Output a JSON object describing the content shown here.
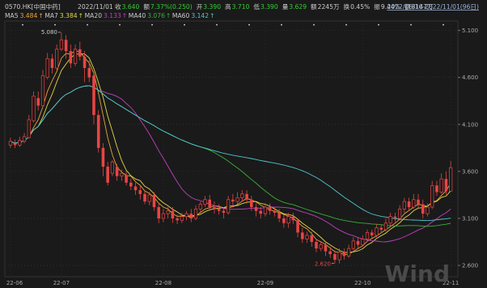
{
  "header": {
    "code": "0570.HK[中国中药]",
    "date": "2022/11/01",
    "fields": [
      {
        "label": "收",
        "value": "3.640",
        "color": "#33cc33"
      },
      {
        "label": "额",
        "value": "7.37%(0.250)",
        "color": "#33cc33"
      },
      {
        "label": "开",
        "value": "3.390",
        "color": "#33cc33"
      },
      {
        "label": "高",
        "value": "3.710",
        "color": "#33cc33"
      },
      {
        "label": "低",
        "value": "3.390",
        "color": "#33cc33"
      },
      {
        "label": "量",
        "value": "3.629",
        "color": "#33cc33"
      },
      {
        "label": "额",
        "value": "2245万",
        "color": "#cccccc"
      },
      {
        "label": "换",
        "value": "0.45%",
        "color": "#cccccc"
      },
      {
        "label": "振",
        "value": "9.44%",
        "color": "#cccccc"
      },
      {
        "label": "额",
        "value": "8147万",
        "color": "#cccccc"
      }
    ],
    "range": "2022/06/16-2022/11/01(96日)"
  },
  "ma_legend": [
    {
      "label": "MA5",
      "value": "3.484",
      "color": "#e8a33a"
    },
    {
      "label": "MA7",
      "value": "3.384",
      "color": "#e0d84a"
    },
    {
      "label": "MA20",
      "value": "3.133",
      "color": "#c040c0"
    },
    {
      "label": "MA40",
      "value": "3.076",
      "color": "#38b038"
    },
    {
      "label": "MA60",
      "value": "3.142",
      "color": "#4fc6d0"
    }
  ],
  "annotations": {
    "high": "5.080",
    "low": "2.620"
  },
  "watermark": "Wind",
  "chart_data": {
    "type": "candlestick",
    "yticks": [
      "5.100",
      "4.600",
      "4.100",
      "3.600",
      "3.100",
      "2.600"
    ],
    "ytick_values": [
      5.1,
      4.6,
      4.1,
      3.6,
      3.1,
      2.6
    ],
    "ylim": [
      2.48,
      5.2
    ],
    "xticks": [
      "22-06",
      "22-07",
      "22-08",
      "22-09",
      "22-10",
      "22-11"
    ],
    "xtick_index": [
      0,
      11,
      33,
      55,
      76,
      95
    ],
    "candles": [
      [
        3.88,
        3.92,
        3.96,
        3.85
      ],
      [
        3.9,
        3.88,
        3.94,
        3.85
      ],
      [
        3.88,
        3.93,
        3.97,
        3.86
      ],
      [
        3.92,
        3.97,
        4.01,
        3.9
      ],
      [
        3.96,
        4.15,
        4.2,
        3.95
      ],
      [
        4.14,
        4.4,
        4.45,
        4.12
      ],
      [
        4.38,
        4.3,
        4.45,
        4.25
      ],
      [
        4.3,
        4.62,
        4.68,
        4.28
      ],
      [
        4.6,
        4.8,
        4.86,
        4.58
      ],
      [
        4.8,
        4.7,
        4.85,
        4.64
      ],
      [
        4.7,
        4.9,
        4.95,
        4.68
      ],
      [
        4.9,
        5.0,
        5.08,
        4.88
      ],
      [
        5.0,
        4.88,
        5.05,
        4.8
      ],
      [
        4.88,
        4.75,
        4.95,
        4.7
      ],
      [
        4.75,
        4.9,
        4.95,
        4.72
      ],
      [
        4.9,
        4.82,
        4.98,
        4.78
      ],
      [
        4.82,
        4.7,
        4.88,
        4.55
      ],
      [
        4.7,
        4.6,
        4.78,
        4.55
      ],
      [
        4.62,
        4.2,
        4.65,
        4.1
      ],
      [
        4.2,
        3.85,
        4.25,
        3.8
      ],
      [
        3.85,
        3.65,
        3.9,
        3.55
      ],
      [
        3.65,
        3.48,
        3.7,
        3.45
      ],
      [
        3.58,
        3.7,
        3.72,
        3.55
      ],
      [
        3.65,
        3.55,
        3.68,
        3.5
      ],
      [
        3.55,
        3.58,
        3.62,
        3.5
      ],
      [
        3.56,
        3.48,
        3.6,
        3.45
      ],
      [
        3.48,
        3.44,
        3.52,
        3.4
      ],
      [
        3.44,
        3.4,
        3.48,
        3.35
      ],
      [
        3.4,
        3.36,
        3.45,
        3.3
      ],
      [
        3.36,
        3.28,
        3.4,
        3.25
      ],
      [
        3.28,
        3.35,
        3.38,
        3.24
      ],
      [
        3.35,
        3.22,
        3.38,
        3.18
      ],
      [
        3.22,
        3.1,
        3.26,
        3.05
      ],
      [
        3.1,
        3.15,
        3.2,
        3.06
      ],
      [
        3.15,
        3.18,
        3.22,
        3.1
      ],
      [
        3.18,
        3.1,
        3.22,
        3.05
      ],
      [
        3.1,
        3.08,
        3.14,
        3.04
      ],
      [
        3.08,
        3.12,
        3.16,
        3.05
      ],
      [
        3.12,
        3.15,
        3.18,
        3.08
      ],
      [
        3.15,
        3.1,
        3.2,
        3.06
      ],
      [
        3.1,
        3.2,
        3.24,
        3.08
      ],
      [
        3.2,
        3.25,
        3.28,
        3.15
      ],
      [
        3.25,
        3.3,
        3.34,
        3.22
      ],
      [
        3.3,
        3.22,
        3.35,
        3.18
      ],
      [
        3.22,
        3.2,
        3.28,
        3.15
      ],
      [
        3.2,
        3.18,
        3.25,
        3.14
      ],
      [
        3.18,
        3.16,
        3.22,
        3.1
      ],
      [
        3.16,
        3.3,
        3.34,
        3.14
      ],
      [
        3.3,
        3.28,
        3.36,
        3.22
      ],
      [
        3.28,
        3.32,
        3.38,
        3.25
      ],
      [
        3.32,
        3.36,
        3.4,
        3.28
      ],
      [
        3.36,
        3.3,
        3.4,
        3.26
      ],
      [
        3.3,
        3.22,
        3.34,
        3.18
      ],
      [
        3.22,
        3.18,
        3.26,
        3.12
      ],
      [
        3.18,
        3.15,
        3.22,
        3.1
      ],
      [
        3.15,
        3.22,
        3.26,
        3.12
      ],
      [
        3.22,
        3.18,
        3.26,
        3.14
      ],
      [
        3.18,
        3.16,
        3.22,
        3.12
      ],
      [
        3.16,
        3.1,
        3.2,
        3.06
      ],
      [
        3.1,
        3.05,
        3.14,
        3.0
      ],
      [
        3.05,
        3.12,
        3.16,
        3.0
      ],
      [
        3.12,
        3.08,
        3.16,
        3.04
      ],
      [
        3.08,
        2.95,
        3.1,
        2.9
      ],
      [
        2.95,
        2.88,
        3.0,
        2.84
      ],
      [
        2.88,
        2.92,
        2.96,
        2.84
      ],
      [
        2.92,
        2.85,
        2.96,
        2.8
      ],
      [
        2.85,
        2.78,
        2.88,
        2.74
      ],
      [
        2.78,
        2.82,
        2.86,
        2.75
      ],
      [
        2.82,
        2.75,
        2.85,
        2.7
      ],
      [
        2.75,
        2.72,
        2.8,
        2.68
      ],
      [
        2.72,
        2.66,
        2.76,
        2.62
      ],
      [
        2.66,
        2.74,
        2.78,
        2.62
      ],
      [
        2.74,
        2.7,
        2.78,
        2.66
      ],
      [
        2.7,
        2.78,
        2.82,
        2.68
      ],
      [
        2.78,
        2.86,
        2.9,
        2.76
      ],
      [
        2.86,
        2.82,
        2.9,
        2.78
      ],
      [
        2.82,
        2.88,
        2.92,
        2.8
      ],
      [
        2.88,
        2.95,
        2.98,
        2.85
      ],
      [
        2.95,
        2.92,
        2.98,
        2.88
      ],
      [
        2.92,
        3.0,
        3.04,
        2.9
      ],
      [
        3.0,
        2.98,
        3.04,
        2.94
      ],
      [
        2.98,
        3.05,
        3.1,
        2.96
      ],
      [
        3.05,
        3.12,
        3.16,
        3.02
      ],
      [
        3.12,
        3.1,
        3.16,
        3.06
      ],
      [
        3.1,
        3.2,
        3.24,
        3.08
      ],
      [
        3.2,
        3.28,
        3.32,
        3.16
      ],
      [
        3.28,
        3.22,
        3.32,
        3.18
      ],
      [
        3.22,
        3.3,
        3.36,
        3.2
      ],
      [
        3.3,
        3.25,
        3.36,
        3.2
      ],
      [
        3.25,
        3.15,
        3.3,
        3.1
      ],
      [
        3.15,
        3.22,
        3.26,
        3.12
      ],
      [
        3.22,
        3.45,
        3.5,
        3.2
      ],
      [
        3.45,
        3.38,
        3.5,
        3.34
      ],
      [
        3.38,
        3.52,
        3.58,
        3.36
      ],
      [
        3.52,
        3.39,
        3.6,
        3.35
      ],
      [
        3.39,
        3.64,
        3.71,
        3.39
      ]
    ]
  }
}
